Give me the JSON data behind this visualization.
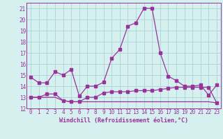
{
  "title": "",
  "xlabel": "Windchill (Refroidissement éolien,°C)",
  "background_color": "#d6f0f0",
  "grid_color": "#aad4d4",
  "line_color": "#993399",
  "xlim": [
    -0.5,
    23.5
  ],
  "ylim": [
    12,
    21.5
  ],
  "yticks": [
    12,
    13,
    14,
    15,
    16,
    17,
    18,
    19,
    20,
    21
  ],
  "xticks": [
    0,
    1,
    2,
    3,
    4,
    5,
    6,
    7,
    8,
    9,
    10,
    11,
    12,
    13,
    14,
    15,
    16,
    17,
    18,
    19,
    20,
    21,
    22,
    23
  ],
  "series1_x": [
    0,
    1,
    2,
    3,
    4,
    5,
    6,
    7,
    8,
    9,
    10,
    11,
    12,
    13,
    14,
    15,
    16,
    17,
    18,
    19,
    20,
    21,
    22,
    23
  ],
  "series1_y": [
    14.8,
    14.3,
    14.3,
    15.3,
    15.0,
    15.5,
    13.1,
    14.0,
    14.0,
    14.35,
    16.5,
    17.3,
    19.4,
    19.7,
    21.0,
    21.0,
    17.0,
    14.9,
    14.5,
    14.0,
    14.0,
    14.1,
    13.2,
    14.1
  ],
  "series2_x": [
    0,
    1,
    2,
    3,
    4,
    5,
    6,
    7,
    8,
    9,
    10,
    11,
    12,
    13,
    14,
    15,
    16,
    17,
    18,
    19,
    20,
    21,
    22,
    23
  ],
  "series2_y": [
    13.0,
    13.0,
    13.3,
    13.3,
    12.7,
    12.6,
    12.6,
    13.0,
    13.0,
    13.4,
    13.5,
    13.5,
    13.5,
    13.6,
    13.6,
    13.6,
    13.7,
    13.8,
    13.9,
    13.9,
    13.9,
    13.9,
    13.9,
    12.5
  ],
  "series3_x": [
    0,
    1,
    2,
    3,
    4,
    5,
    6,
    7,
    8,
    9,
    10,
    11,
    12,
    13,
    14,
    15,
    16,
    17,
    18,
    19,
    20,
    21,
    22,
    23
  ],
  "series3_y": [
    13.0,
    13.0,
    13.0,
    13.0,
    12.7,
    12.6,
    12.6,
    12.6,
    12.6,
    12.6,
    12.6,
    12.6,
    12.6,
    12.6,
    12.6,
    12.6,
    12.6,
    12.6,
    12.6,
    12.6,
    12.6,
    12.6,
    12.6,
    12.5
  ],
  "tick_fontsize": 5.5,
  "xlabel_fontsize": 6.0
}
